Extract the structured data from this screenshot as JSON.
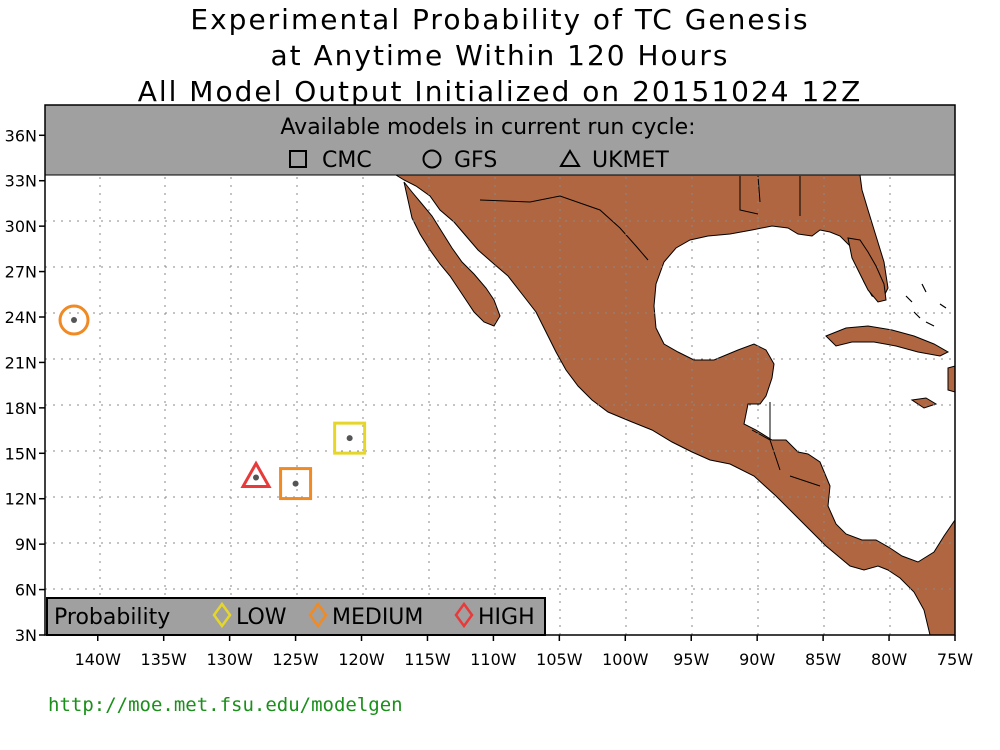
{
  "title": {
    "line1": "Experimental Probability of TC Genesis",
    "line2": "at Anytime Within 120 Hours",
    "line3": "All Model Output Initialized on 20151024 12Z"
  },
  "banner": {
    "heading": "Available models in current run cycle:",
    "models": [
      {
        "symbol": "square",
        "label": "CMC"
      },
      {
        "symbol": "circle",
        "label": "GFS"
      },
      {
        "symbol": "triangle",
        "label": "UKMET"
      }
    ]
  },
  "legend": {
    "title": "Probability",
    "items": [
      {
        "label": "LOW",
        "color": "#e6d62a"
      },
      {
        "label": "MEDIUM",
        "color": "#f08a24"
      },
      {
        "label": "HIGH",
        "color": "#e83a3a"
      }
    ]
  },
  "axes": {
    "lon_labels": [
      "140W",
      "135W",
      "130W",
      "125W",
      "120W",
      "115W",
      "110W",
      "105W",
      "100W",
      "95W",
      "90W",
      "85W",
      "80W",
      "75W"
    ],
    "lat_labels": [
      "3N",
      "6N",
      "9N",
      "12N",
      "15N",
      "18N",
      "21N",
      "24N",
      "27N",
      "30N",
      "33N",
      "36N"
    ],
    "lon_range": [
      -144,
      -75
    ],
    "lat_range": [
      3,
      38
    ]
  },
  "colors": {
    "land": "#b06640",
    "banner": "#a0a0a0",
    "legend_bg": "#a0a0a0",
    "url": "#1a8f1a"
  },
  "genesis_points": [
    {
      "model": "GFS",
      "symbol": "circle",
      "probability": "MEDIUM",
      "lon": -141.8,
      "lat": 23.8
    },
    {
      "model": "UKMET",
      "symbol": "triangle",
      "probability": "HIGH",
      "lon": -128.0,
      "lat": 13.4
    },
    {
      "model": "CMC",
      "symbol": "square",
      "probability": "MEDIUM",
      "lon": -125.0,
      "lat": 13.0
    },
    {
      "model": "CMC",
      "symbol": "square",
      "probability": "LOW",
      "lon": -120.9,
      "lat": 16.0
    }
  ],
  "url": "http://moe.met.fsu.edu/modelgen"
}
